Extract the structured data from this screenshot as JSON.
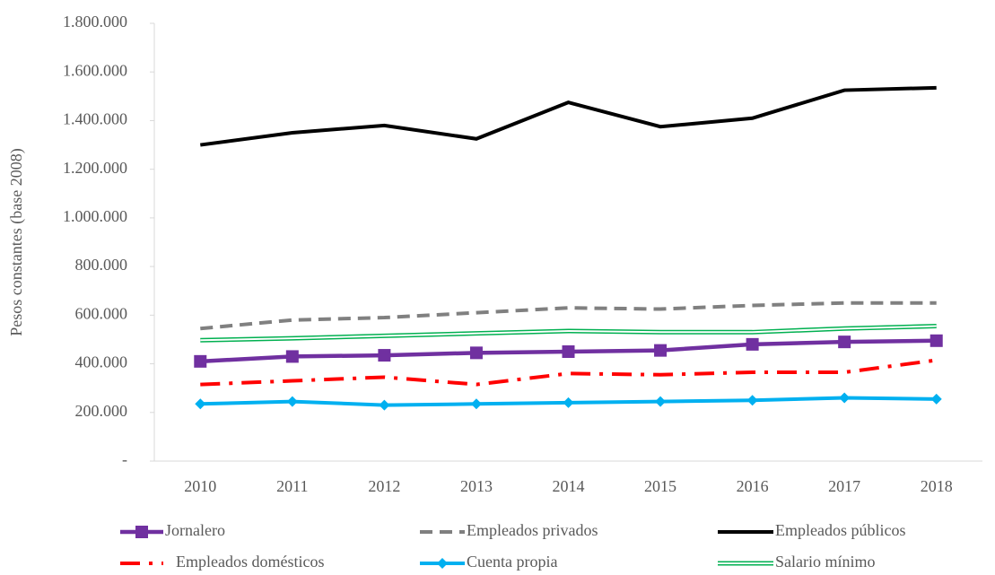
{
  "chart_data": {
    "type": "line",
    "y_label": "Pesos constantes (base 2008)",
    "categories": [
      "2010",
      "2011",
      "2012",
      "2013",
      "2014",
      "2015",
      "2016",
      "2017",
      "2018"
    ],
    "ylim": [
      0,
      1800000
    ],
    "yticks": [
      {
        "value": 0,
        "label": "-"
      },
      {
        "value": 200000,
        "label": "200.000"
      },
      {
        "value": 400000,
        "label": "400.000"
      },
      {
        "value": 600000,
        "label": "600.000"
      },
      {
        "value": 800000,
        "label": "800.000"
      },
      {
        "value": 1000000,
        "label": "1.000.000"
      },
      {
        "value": 1200000,
        "label": "1.200.000"
      },
      {
        "value": 1400000,
        "label": "1.400.000"
      },
      {
        "value": 1600000,
        "label": "1.600.000"
      },
      {
        "value": 1800000,
        "label": "1.800.000"
      }
    ],
    "legend": "bottom",
    "series": [
      {
        "name": "Jornalero",
        "color": "#7030a0",
        "style": "solid",
        "marker": "square",
        "values": [
          410000,
          430000,
          435000,
          445000,
          450000,
          455000,
          480000,
          490000,
          495000
        ]
      },
      {
        "name": "Empleados privados",
        "color": "#808080",
        "style": "dash",
        "values": [
          545000,
          580000,
          590000,
          610000,
          630000,
          625000,
          640000,
          650000,
          650000
        ]
      },
      {
        "name": "Empleados públicos",
        "color": "#000000",
        "style": "solid",
        "values": [
          1300000,
          1350000,
          1380000,
          1325000,
          1475000,
          1375000,
          1410000,
          1525000,
          1535000
        ]
      },
      {
        "name": "Empleados domésticos",
        "color": "#ff0000",
        "style": "dashdot",
        "values": [
          315000,
          330000,
          345000,
          315000,
          360000,
          355000,
          365000,
          365000,
          415000
        ]
      },
      {
        "name": "Cuenta propia",
        "color": "#00b0f0",
        "style": "solid",
        "marker": "diamond",
        "values": [
          235000,
          245000,
          230000,
          235000,
          240000,
          245000,
          250000,
          260000,
          255000
        ]
      },
      {
        "name": "Salario mínimo",
        "color": "#00b050",
        "style": "double",
        "values": [
          497000,
          505000,
          515000,
          525000,
          535000,
          530000,
          530000,
          545000,
          555000
        ]
      }
    ]
  }
}
